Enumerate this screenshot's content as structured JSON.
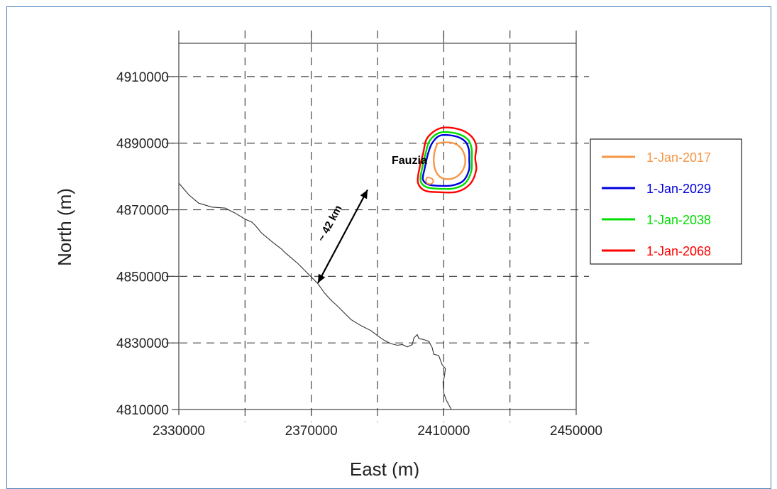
{
  "chart_data": {
    "type": "map",
    "title": "",
    "xlabel": "East (m)",
    "ylabel": "North (m)",
    "xlim": [
      2330000,
      2450000
    ],
    "ylim": [
      4810000,
      4920000
    ],
    "x_ticks": [
      2330000,
      2370000,
      2410000,
      2450000
    ],
    "x_tick_labels": [
      "2330000",
      "2370000",
      "2410000",
      "2450000"
    ],
    "y_ticks": [
      4810000,
      4830000,
      4850000,
      4870000,
      4890000,
      4910000
    ],
    "y_tick_labels": [
      "4810000",
      "4830000",
      "4850000",
      "4870000",
      "4890000",
      "4910000"
    ],
    "grid_x": [
      2350000,
      2370000,
      2390000,
      2410000,
      2430000
    ],
    "grid_y": [
      4830000,
      4850000,
      4870000,
      4890000,
      4910000
    ],
    "grid": "dashed",
    "legend_position": "right",
    "site_label": "Fauzia",
    "distance_label": "~ 42 km",
    "distance_arrow": [
      [
        2387000,
        4876000
      ],
      [
        2372000,
        4848000
      ]
    ],
    "series": [
      {
        "name": "1-Jan-2017",
        "color": "#f79646",
        "outline": [
          [
            2408500,
            4890000
          ],
          [
            2412000,
            4890200
          ],
          [
            2414500,
            4889200
          ],
          [
            2416000,
            4887200
          ],
          [
            2416500,
            4884500
          ],
          [
            2415800,
            4882000
          ],
          [
            2414000,
            4880000
          ],
          [
            2411500,
            4879200
          ],
          [
            2409000,
            4879800
          ],
          [
            2407500,
            4881800
          ],
          [
            2407000,
            4884500
          ],
          [
            2407200,
            4887200
          ],
          [
            2407800,
            4889200
          ]
        ],
        "extra_outline": [
          [
            2405200,
            4879700
          ],
          [
            2406500,
            4879300
          ],
          [
            2406800,
            4878300
          ],
          [
            2405800,
            4877700
          ],
          [
            2404800,
            4878200
          ],
          [
            2404700,
            4879200
          ]
        ]
      },
      {
        "name": "1-Jan-2029",
        "color": "#0000e0",
        "outline": [
          [
            2409000,
            4892300
          ],
          [
            2413500,
            4892100
          ],
          [
            2416500,
            4890500
          ],
          [
            2417600,
            4888000
          ],
          [
            2417700,
            4885000
          ],
          [
            2417600,
            4881800
          ],
          [
            2415800,
            4878600
          ],
          [
            2412500,
            4877300
          ],
          [
            2408500,
            4877200
          ],
          [
            2405300,
            4877600
          ],
          [
            2403700,
            4879200
          ],
          [
            2404300,
            4882600
          ],
          [
            2405200,
            4886600
          ],
          [
            2406500,
            4890000
          ]
        ]
      },
      {
        "name": "1-Jan-2038",
        "color": "#00dd00",
        "outline": [
          [
            2409000,
            4893200
          ],
          [
            2413800,
            4892900
          ],
          [
            2417200,
            4891200
          ],
          [
            2418400,
            4888500
          ],
          [
            2418500,
            4885000
          ],
          [
            2418300,
            4881500
          ],
          [
            2416500,
            4878000
          ],
          [
            2413000,
            4876400
          ],
          [
            2408500,
            4876300
          ],
          [
            2404800,
            4876800
          ],
          [
            2403000,
            4878700
          ],
          [
            2403500,
            4882600
          ],
          [
            2404500,
            4886800
          ],
          [
            2405800,
            4890800
          ]
        ]
      },
      {
        "name": "1-Jan-2068",
        "color": "#ff0000",
        "outline": [
          [
            2409000,
            4894500
          ],
          [
            2414500,
            4894200
          ],
          [
            2418200,
            4892200
          ],
          [
            2419800,
            4889200
          ],
          [
            2419500,
            4885500
          ],
          [
            2419800,
            4882000
          ],
          [
            2418000,
            4877800
          ],
          [
            2414000,
            4875400
          ],
          [
            2408500,
            4875300
          ],
          [
            2404200,
            4875800
          ],
          [
            2402200,
            4878300
          ],
          [
            2402700,
            4882600
          ],
          [
            2403800,
            4887000
          ],
          [
            2405000,
            4891500
          ]
        ]
      }
    ],
    "coastline": [
      [
        2330000,
        4878000
      ],
      [
        2333000,
        4874500
      ],
      [
        2336000,
        4872000
      ],
      [
        2340000,
        4870800
      ],
      [
        2344000,
        4870500
      ],
      [
        2347000,
        4869000
      ],
      [
        2350000,
        4867200
      ],
      [
        2352000,
        4866300
      ],
      [
        2353000,
        4865400
      ],
      [
        2355000,
        4863000
      ],
      [
        2358000,
        4860500
      ],
      [
        2361000,
        4858200
      ],
      [
        2362000,
        4857200
      ],
      [
        2364000,
        4855500
      ],
      [
        2366000,
        4853800
      ],
      [
        2368000,
        4851800
      ],
      [
        2370000,
        4849800
      ],
      [
        2372000,
        4847800
      ],
      [
        2374000,
        4845000
      ],
      [
        2376000,
        4842800
      ],
      [
        2378000,
        4841000
      ],
      [
        2380000,
        4839000
      ],
      [
        2382000,
        4837000
      ],
      [
        2385000,
        4835200
      ],
      [
        2388000,
        4833700
      ],
      [
        2390000,
        4832200
      ],
      [
        2392000,
        4830800
      ],
      [
        2394000,
        4829800
      ],
      [
        2396000,
        4829300
      ],
      [
        2397500,
        4829500
      ],
      [
        2399000,
        4828800
      ],
      [
        2400500,
        4829500
      ],
      [
        2401000,
        4831500
      ],
      [
        2402000,
        4832500
      ],
      [
        2402500,
        4831300
      ],
      [
        2404000,
        4831000
      ],
      [
        2405500,
        4830500
      ],
      [
        2406500,
        4828600
      ],
      [
        2407000,
        4826600
      ],
      [
        2408500,
        4826200
      ],
      [
        2409500,
        4823500
      ],
      [
        2410500,
        4822300
      ],
      [
        2410200,
        4820000
      ],
      [
        2409800,
        4818200
      ],
      [
        2410000,
        4815000
      ],
      [
        2410700,
        4813000
      ],
      [
        2411500,
        4811500
      ],
      [
        2412300,
        4810000
      ]
    ]
  }
}
